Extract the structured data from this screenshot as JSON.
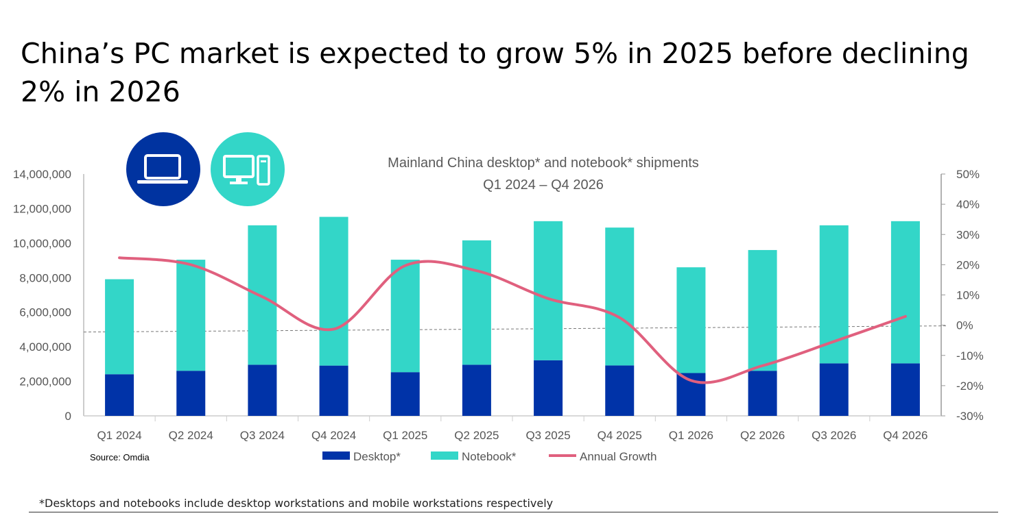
{
  "headline": "China’s PC market is expected to grow 5% in 2025 before declining 2% in 2026",
  "icons": [
    "laptop-icon",
    "desktop-computer-icon"
  ],
  "source": "Source: Omdia",
  "footnote": "*Desktops and notebooks include desktop workstations and mobile workstations respectively",
  "chart_data": {
    "type": "bar",
    "stacked": true,
    "title": "Mainland China desktop* and notebook* shipments",
    "subtitle": "Q1 2024 – Q4 2026",
    "categories": [
      "Q1 2024",
      "Q2 2024",
      "Q3 2024",
      "Q4 2024",
      "Q1 2025",
      "Q2 2025",
      "Q3 2025",
      "Q4 2025",
      "Q1 2026",
      "Q2 2026",
      "Q3 2026",
      "Q4 2026"
    ],
    "series": [
      {
        "name": "Desktop*",
        "type": "bar",
        "axis": "left",
        "color": "#0033a8",
        "values": [
          2410000,
          2610000,
          2960000,
          2910000,
          2530000,
          2960000,
          3220000,
          2920000,
          2480000,
          2610000,
          3040000,
          3040000
        ]
      },
      {
        "name": "Notebook*",
        "type": "bar",
        "axis": "left",
        "color": "#33d6c8",
        "values": [
          5500000,
          6430000,
          8070000,
          8610000,
          6510000,
          7200000,
          8050000,
          7980000,
          6120000,
          6990000,
          7990000,
          8230000
        ]
      },
      {
        "name": "Annual Growth",
        "type": "line",
        "axis": "right",
        "color": "#e0607e",
        "values": [
          22.3,
          20.0,
          9.4,
          -1.3,
          19.7,
          18.0,
          8.8,
          2.5,
          -18.3,
          -13.4,
          -5.4,
          2.9
        ]
      }
    ],
    "yleft": {
      "range": [
        0,
        14000000
      ],
      "ticks": [
        "0",
        "2,000,000",
        "4,000,000",
        "6,000,000",
        "8,000,000",
        "10,000,000",
        "12,000,000",
        "14,000,000"
      ]
    },
    "yright": {
      "range": [
        -30,
        50
      ],
      "ticks": [
        "-30%",
        "-20%",
        "-10%",
        "0%",
        "10%",
        "20%",
        "30%",
        "40%",
        "50%"
      ]
    },
    "grid": false,
    "zero_line": "dashed",
    "legend": "bottom"
  }
}
